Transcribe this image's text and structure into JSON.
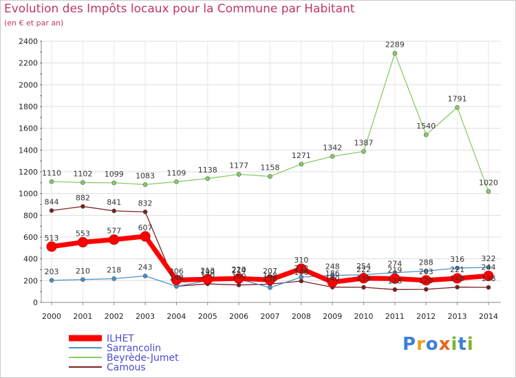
{
  "title": "Evolution des Impôts locaux pour la Commune par Habitant",
  "subtitle": "(en € et par an)",
  "logo": {
    "text": "Proxiti",
    "colors": [
      "#3a7fd6",
      "#e8a21c",
      "#3a7fd6",
      "#e8641c",
      "#7ab52e",
      "#3a7fd6",
      "#7ab52e"
    ]
  },
  "chart_data": {
    "type": "line",
    "x": [
      "2000",
      "2001",
      "2002",
      "2003",
      "2004",
      "2005",
      "2006",
      "2007",
      "2008",
      "2009",
      "2010",
      "2011",
      "2012",
      "2013",
      "2014"
    ],
    "ylim": [
      0,
      2400
    ],
    "yticks": [
      0,
      200,
      400,
      600,
      800,
      1000,
      1200,
      1400,
      1600,
      1800,
      2000,
      2200,
      2400
    ],
    "grid": true,
    "legend_position": "bottom-left",
    "series": [
      {
        "name": "ILHET",
        "color": "#ff0000",
        "values": [
          513,
          553,
          577,
          607,
          206,
          213,
          220,
          207,
          310,
          186,
          222,
          219,
          203,
          221,
          244
        ]
      },
      {
        "name": "Sarrancolin",
        "color": "#4a90c8",
        "values": [
          203,
          210,
          218,
          243,
          148,
          199,
          214,
          136,
          233,
          248,
          254,
          274,
          288,
          316,
          322
        ]
      },
      {
        "name": "Beyrède-Jumet",
        "color": "#88cc66",
        "values": [
          1110,
          1102,
          1099,
          1083,
          1109,
          1138,
          1177,
          1158,
          1271,
          1342,
          1387,
          2289,
          1540,
          1791,
          1020
        ]
      },
      {
        "name": "Camous",
        "color": "#7a1f1f",
        "values": [
          844,
          882,
          841,
          832,
          148,
          170,
          160,
          168,
          196,
          140,
          139,
          118,
          120,
          140,
          138
        ]
      }
    ],
    "labels": {
      "ILHET": [
        "513",
        "553",
        "577",
        "607",
        "206",
        "213",
        "220",
        "207",
        "310",
        "186",
        "222",
        "219",
        "203",
        "221",
        "244"
      ],
      "Sarrancolin": [
        "203",
        "210",
        "218",
        "243",
        "148",
        "199",
        "214",
        "136",
        "233",
        "248",
        "254",
        "274",
        "288",
        "316",
        "322"
      ],
      "Beyrède-Jumet": [
        "1110",
        "1102",
        "1099",
        "1083",
        "1109",
        "1138",
        "1177",
        "1158",
        "1271",
        "1342",
        "1387",
        "2289",
        "1540",
        "1791",
        "1020"
      ],
      "Camous": [
        "844",
        "882",
        "841",
        "832",
        "148",
        "170",
        "160",
        "168",
        "196",
        "140",
        "139",
        "118",
        "120",
        "140",
        "138"
      ]
    }
  }
}
